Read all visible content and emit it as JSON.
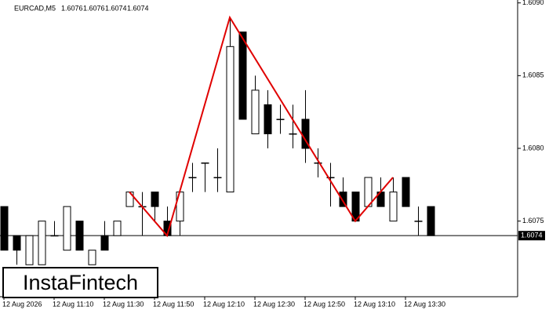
{
  "chart_data": {
    "type": "candlestick",
    "symbol": "EURCAD,M5",
    "header_prices": [
      1.6076,
      1.6076,
      1.6074,
      1.6074
    ],
    "categories": [
      "12 Aug 2026",
      null,
      null,
      null,
      "12 Aug 11:10",
      null,
      null,
      null,
      "12 Aug 11:30",
      null,
      null,
      null,
      "12 Aug 11:50",
      null,
      null,
      null,
      "12 Aug 12:10",
      null,
      null,
      null,
      "12 Aug 12:30",
      null,
      null,
      null,
      "12 Aug 12:50",
      null,
      null,
      null,
      "12 Aug 13:10",
      null,
      null,
      null,
      "12 Aug 13:30",
      null,
      null
    ],
    "open": [
      1.6076,
      1.6074,
      1.6072,
      1.6072,
      1.6074,
      1.6073,
      1.6075,
      1.6072,
      1.6074,
      1.6074,
      1.6076,
      1.6076,
      1.6077,
      1.6075,
      1.6075,
      1.6078,
      1.6079,
      1.6078,
      1.6077,
      1.6088,
      1.6081,
      1.6083,
      1.6082,
      1.6081,
      1.6082,
      1.6079,
      1.6078,
      1.6077,
      1.6077,
      1.6076,
      1.6077,
      1.6075,
      1.6078,
      1.6075,
      1.6076
    ],
    "high": [
      1.6076,
      1.6074,
      1.6074,
      1.6075,
      1.6075,
      1.6076,
      1.6075,
      1.6073,
      1.6075,
      1.6075,
      1.6077,
      1.6077,
      1.6077,
      1.6076,
      1.6077,
      1.6079,
      1.6079,
      1.608,
      1.6089,
      1.6088,
      1.6085,
      1.6084,
      1.6083,
      1.6083,
      1.6084,
      1.608,
      1.6079,
      1.6078,
      1.6077,
      1.6078,
      1.6078,
      1.6078,
      1.6078,
      1.6076,
      1.6076
    ],
    "low": [
      1.6073,
      1.6072,
      1.6072,
      1.6072,
      1.6074,
      1.6073,
      1.6073,
      1.6072,
      1.6073,
      1.6074,
      1.6076,
      1.6074,
      1.6075,
      1.6074,
      1.6074,
      1.6077,
      1.6077,
      1.6077,
      1.6077,
      1.6082,
      1.6081,
      1.608,
      1.6081,
      1.608,
      1.6079,
      1.6078,
      1.6076,
      1.6076,
      1.6075,
      1.6076,
      1.6076,
      1.6075,
      1.6076,
      1.6074,
      1.6074
    ],
    "close": [
      1.6073,
      1.6073,
      1.6074,
      1.6075,
      1.6074,
      1.6076,
      1.6073,
      1.6073,
      1.6073,
      1.6075,
      1.6077,
      1.6076,
      1.6076,
      1.6074,
      1.6077,
      1.6078,
      1.6079,
      1.6078,
      1.6087,
      1.6082,
      1.6084,
      1.6081,
      1.6082,
      1.6081,
      1.608,
      1.6079,
      1.6078,
      1.6076,
      1.6075,
      1.6078,
      1.6076,
      1.6077,
      1.6076,
      1.6075,
      1.6074
    ],
    "up_color": "#ffffff",
    "down_color": "#000000",
    "last_price": 1.6074,
    "pattern": {
      "color": "#e00000",
      "x": [
        10,
        13,
        18,
        28,
        31
      ],
      "y": [
        1.6077,
        1.6074,
        1.6089,
        1.6075,
        1.6078
      ]
    },
    "ylim": [
      1.60698,
      1.60902
    ],
    "yticks": [
      1.6075,
      {
        "value": 1.608,
        "label": "1.6080"
      },
      1.6085,
      {
        "value": 1.609,
        "label": "1.6090"
      }
    ]
  },
  "watermark": "InstaFintech"
}
